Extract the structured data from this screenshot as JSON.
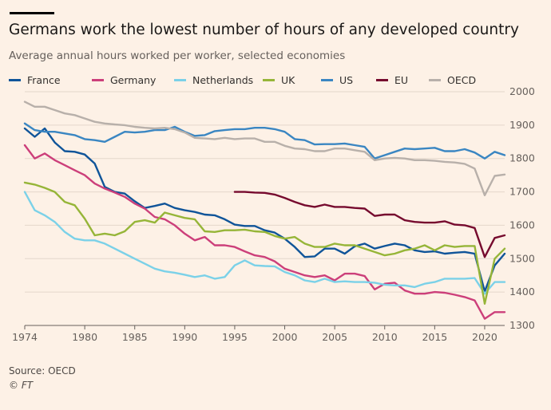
{
  "title": "Germans work the lowest number of hours of any developed country",
  "subtitle": "Average annual hours worked per worker, selected economies",
  "source": "Source: OECD",
  "credit": "© FT",
  "colors": {
    "background": "#fdf1e6",
    "grid": "#e4d7cb",
    "axis": "#66605c",
    "text": "#66605c"
  },
  "chart_data": {
    "type": "line",
    "title": "Germans work the lowest number of hours of any developed country",
    "subtitle": "Average annual hours worked per worker, selected economies",
    "xlabel": "",
    "ylabel": "",
    "xlim": [
      1974,
      2022
    ],
    "ylim": [
      1300,
      2000
    ],
    "x_ticks": [
      1974,
      1980,
      1985,
      1990,
      1995,
      2000,
      2005,
      2010,
      2015,
      2020
    ],
    "y_ticks": [
      1300,
      1400,
      1500,
      1600,
      1700,
      1800,
      1900,
      2000
    ],
    "grid": true,
    "legend_position": "top",
    "x": [
      1974,
      1975,
      1976,
      1977,
      1978,
      1979,
      1980,
      1981,
      1982,
      1983,
      1984,
      1985,
      1986,
      1987,
      1988,
      1989,
      1990,
      1991,
      1992,
      1993,
      1994,
      1995,
      1996,
      1997,
      1998,
      1999,
      2000,
      2001,
      2002,
      2003,
      2004,
      2005,
      2006,
      2007,
      2008,
      2009,
      2010,
      2011,
      2012,
      2013,
      2014,
      2015,
      2016,
      2017,
      2018,
      2019,
      2020,
      2021,
      2022
    ],
    "series": [
      {
        "name": "France",
        "color": "#0f5499",
        "values": [
          1890,
          1865,
          1890,
          1848,
          1822,
          1820,
          1812,
          1785,
          1715,
          1700,
          1695,
          1672,
          1652,
          1658,
          1665,
          1652,
          1645,
          1640,
          1632,
          1630,
          1618,
          1602,
          1598,
          1598,
          1585,
          1578,
          1560,
          1535,
          1505,
          1507,
          1530,
          1530,
          1515,
          1537,
          1545,
          1530,
          1538,
          1545,
          1540,
          1525,
          1520,
          1522,
          1515,
          1518,
          1520,
          1515,
          1402,
          1480,
          1515
        ]
      },
      {
        "name": "Germany",
        "color": "#cc3f7a",
        "values": [
          1840,
          1800,
          1815,
          1795,
          1780,
          1765,
          1750,
          1725,
          1710,
          1698,
          1685,
          1665,
          1650,
          1625,
          1618,
          1600,
          1575,
          1555,
          1565,
          1540,
          1540,
          1535,
          1522,
          1510,
          1505,
          1492,
          1470,
          1460,
          1450,
          1445,
          1450,
          1435,
          1455,
          1455,
          1448,
          1408,
          1425,
          1428,
          1405,
          1395,
          1395,
          1400,
          1398,
          1392,
          1385,
          1375,
          1320,
          1340,
          1340
        ]
      },
      {
        "name": "Netherlands",
        "color": "#7bd1e8",
        "values": [
          1700,
          1645,
          1630,
          1610,
          1580,
          1560,
          1555,
          1555,
          1545,
          1530,
          1515,
          1500,
          1485,
          1470,
          1462,
          1458,
          1452,
          1445,
          1450,
          1440,
          1445,
          1480,
          1495,
          1480,
          1478,
          1477,
          1460,
          1450,
          1435,
          1430,
          1440,
          1430,
          1432,
          1430,
          1430,
          1428,
          1422,
          1420,
          1420,
          1415,
          1425,
          1430,
          1440,
          1440,
          1440,
          1442,
          1395,
          1430,
          1430
        ]
      },
      {
        "name": "UK",
        "color": "#96b538",
        "values": [
          1728,
          1722,
          1712,
          1700,
          1670,
          1660,
          1620,
          1570,
          1575,
          1570,
          1582,
          1610,
          1615,
          1608,
          1638,
          1630,
          1622,
          1618,
          1582,
          1580,
          1585,
          1585,
          1587,
          1582,
          1580,
          1568,
          1560,
          1565,
          1545,
          1535,
          1535,
          1545,
          1540,
          1540,
          1530,
          1520,
          1510,
          1515,
          1525,
          1530,
          1540,
          1525,
          1540,
          1535,
          1538,
          1538,
          1365,
          1500,
          1530
        ]
      },
      {
        "name": "US",
        "color": "#3a86c2",
        "values": [
          1905,
          1885,
          1880,
          1880,
          1875,
          1870,
          1858,
          1855,
          1850,
          1865,
          1880,
          1878,
          1880,
          1885,
          1885,
          1895,
          1880,
          1868,
          1870,
          1882,
          1885,
          1888,
          1888,
          1892,
          1892,
          1888,
          1880,
          1858,
          1855,
          1842,
          1843,
          1843,
          1845,
          1840,
          1835,
          1800,
          1810,
          1820,
          1830,
          1828,
          1830,
          1832,
          1822,
          1822,
          1828,
          1818,
          1800,
          1820,
          1810
        ]
      },
      {
        "name": "EU",
        "color": "#760a2e",
        "values": [
          null,
          null,
          null,
          null,
          null,
          null,
          null,
          null,
          null,
          null,
          null,
          null,
          null,
          null,
          null,
          null,
          null,
          null,
          null,
          null,
          null,
          1700,
          1700,
          1698,
          1697,
          1692,
          1682,
          1670,
          1660,
          1655,
          1662,
          1655,
          1655,
          1652,
          1650,
          1628,
          1632,
          1632,
          1615,
          1610,
          1608,
          1608,
          1612,
          1602,
          1600,
          1592,
          1505,
          1562,
          1570
        ]
      },
      {
        "name": "OECD",
        "color": "#b8b0aa",
        "values": [
          1970,
          1955,
          1955,
          1945,
          1935,
          1930,
          1920,
          1910,
          1905,
          1902,
          1900,
          1895,
          1892,
          1890,
          1892,
          1888,
          1878,
          1862,
          1860,
          1858,
          1862,
          1858,
          1860,
          1860,
          1850,
          1850,
          1838,
          1830,
          1828,
          1822,
          1822,
          1830,
          1830,
          1825,
          1820,
          1795,
          1800,
          1802,
          1800,
          1795,
          1795,
          1793,
          1790,
          1788,
          1784,
          1770,
          1690,
          1748,
          1752
        ]
      }
    ]
  }
}
